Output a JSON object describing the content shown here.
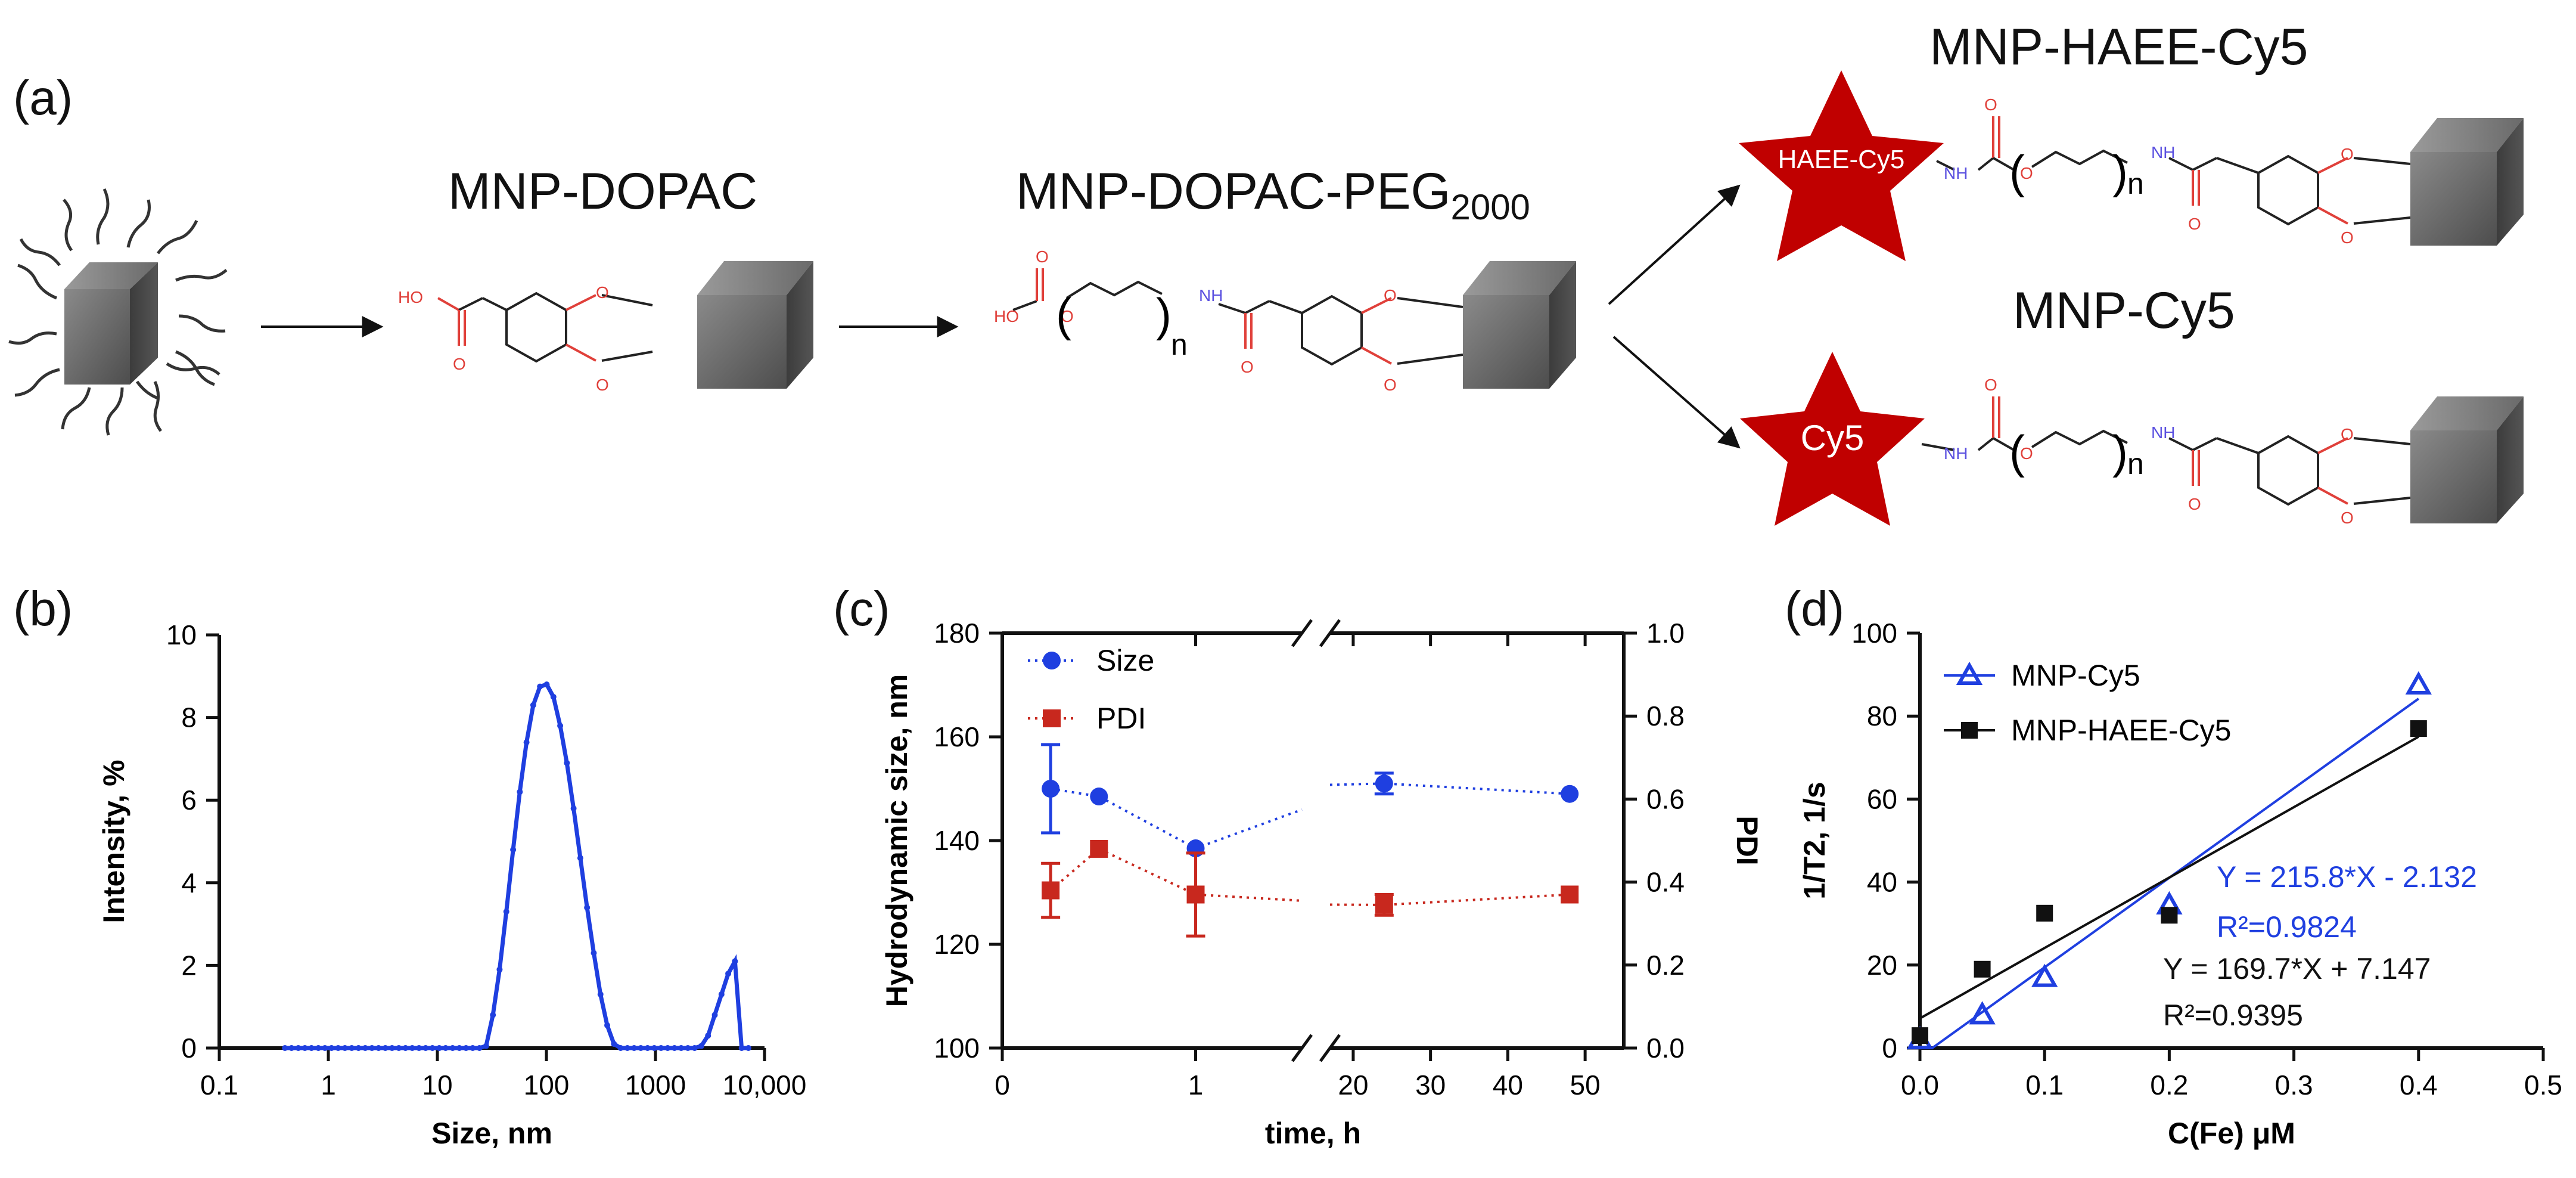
{
  "panels": {
    "a": "(a)",
    "b": "(b)",
    "c": "(c)",
    "d": "(d)"
  },
  "scheme": {
    "compounds": [
      {
        "name": "MNP-DOPAC"
      },
      {
        "name": "MNP-DOPAC-PEG",
        "sub": "2000"
      },
      {
        "name": "MNP-HAEE-Cy5",
        "star_label": "HAEE-Cy5"
      },
      {
        "name": "MNP-Cy5",
        "star_label": "Cy5"
      }
    ],
    "atoms": {
      "HO": "HO",
      "O": "O",
      "NH": "NH",
      "n": "n"
    },
    "colors": {
      "oxygen": "#e0403a",
      "nitrogen": "#5a50e0",
      "star": "#c00000",
      "cube": "#5a5a5a"
    }
  },
  "chart_data": [
    {
      "panel": "b",
      "type": "line",
      "xlabel": "Size, nm",
      "ylabel": "Intensity, %",
      "xscale": "log",
      "xlim": [
        0.1,
        10000
      ],
      "ylim": [
        0,
        10
      ],
      "xticks": [
        "0.1",
        "1",
        "10",
        "100",
        "1000",
        "10,000"
      ],
      "yticks": [
        "0",
        "2",
        "4",
        "6",
        "8",
        "10"
      ],
      "color": "#1f3fe0",
      "x": [
        0.4,
        0.46,
        0.53,
        0.61,
        0.7,
        0.81,
        0.93,
        1.07,
        1.23,
        1.42,
        1.64,
        1.89,
        2.18,
        2.51,
        2.89,
        3.33,
        3.84,
        4.43,
        5.1,
        5.88,
        6.78,
        7.81,
        9.0,
        10.4,
        11.9,
        13.8,
        15.9,
        18.3,
        21.1,
        24.3,
        28.0,
        32.3,
        37.2,
        42.9,
        49.5,
        57.0,
        65.7,
        75.7,
        87.3,
        100.6,
        116,
        133.7,
        154,
        177.5,
        204.6,
        235.8,
        271.8,
        313.2,
        361,
        416,
        479.5,
        552.6,
        636.9,
        734,
        846,
        975,
        1124,
        1295,
        1493,
        1720,
        1983,
        2285,
        2634,
        3035,
        3498,
        4032,
        4647,
        5355,
        6172,
        7113
      ],
      "y": [
        0,
        0,
        0,
        0,
        0,
        0,
        0,
        0,
        0,
        0,
        0,
        0,
        0,
        0,
        0,
        0,
        0,
        0,
        0,
        0,
        0,
        0,
        0,
        0,
        0,
        0,
        0,
        0,
        0,
        0,
        0.05,
        0.8,
        1.9,
        3.3,
        4.8,
        6.2,
        7.4,
        8.3,
        8.75,
        8.8,
        8.5,
        7.8,
        6.9,
        5.8,
        4.6,
        3.4,
        2.3,
        1.3,
        0.55,
        0.1,
        0,
        0,
        0,
        0,
        0,
        0,
        0,
        0,
        0,
        0,
        0,
        0,
        0.05,
        0.3,
        0.8,
        1.3,
        1.8,
        2.1,
        0,
        0
      ]
    },
    {
      "panel": "c",
      "type": "scatter",
      "xlabel": "time, h",
      "ylabel": "Hydrodynamic size, nm",
      "y2label": "PDI",
      "xticks_left": [
        "0",
        "1"
      ],
      "xticks_right": [
        "20",
        "30",
        "40",
        "50"
      ],
      "yticks": [
        "100",
        "120",
        "140",
        "160",
        "180"
      ],
      "y2ticks": [
        "0.0",
        "0.2",
        "0.4",
        "0.6",
        "0.8",
        "1.0"
      ],
      "ylim": [
        100,
        180
      ],
      "y2lim": [
        0,
        1.0
      ],
      "series": [
        {
          "name": "Size",
          "color": "#1f3fe0",
          "marker": "circle",
          "axis": "left",
          "x": [
            0.25,
            0.5,
            1,
            24,
            48
          ],
          "y": [
            150,
            148.5,
            138.5,
            151,
            149
          ],
          "err": [
            8.5,
            0,
            0,
            2,
            0
          ]
        },
        {
          "name": "PDI",
          "color": "#c8281e",
          "marker": "square",
          "axis": "right",
          "x": [
            0.25,
            0.5,
            1,
            24,
            48
          ],
          "y": [
            0.38,
            0.48,
            0.37,
            0.345,
            0.37
          ],
          "err": [
            0.065,
            0,
            0.1,
            0.025,
            0
          ]
        }
      ]
    },
    {
      "panel": "d",
      "type": "scatter",
      "xlabel": "C(Fe) μM",
      "ylabel": "1/T2, 1/s",
      "xlim": [
        0,
        0.5
      ],
      "ylim": [
        0,
        100
      ],
      "xticks": [
        "0.0",
        "0.1",
        "0.2",
        "0.3",
        "0.4",
        "0.5"
      ],
      "yticks": [
        "0",
        "20",
        "40",
        "60",
        "80",
        "100"
      ],
      "series": [
        {
          "name": "MNP-Cy5",
          "color": "#1f3fe0",
          "marker": "open-triangle",
          "x": [
            0,
            0.05,
            0.1,
            0.2,
            0.4
          ],
          "y": [
            2,
            8,
            17,
            34.5,
            87.5
          ],
          "fit": {
            "slope": 215.8,
            "intercept": -2.132
          },
          "eq": "Y = 215.8*X - 2.132",
          "r2": "R²=0.9824"
        },
        {
          "name": "MNP-HAEE-Cy5",
          "color": "#111111",
          "marker": "square",
          "x": [
            0,
            0.05,
            0.1,
            0.2,
            0.4
          ],
          "y": [
            3,
            19,
            32.5,
            32,
            77
          ],
          "fit": {
            "slope": 169.7,
            "intercept": 7.147
          },
          "eq": "Y = 169.7*X + 7.147",
          "r2": "R²=0.9395"
        }
      ]
    }
  ]
}
